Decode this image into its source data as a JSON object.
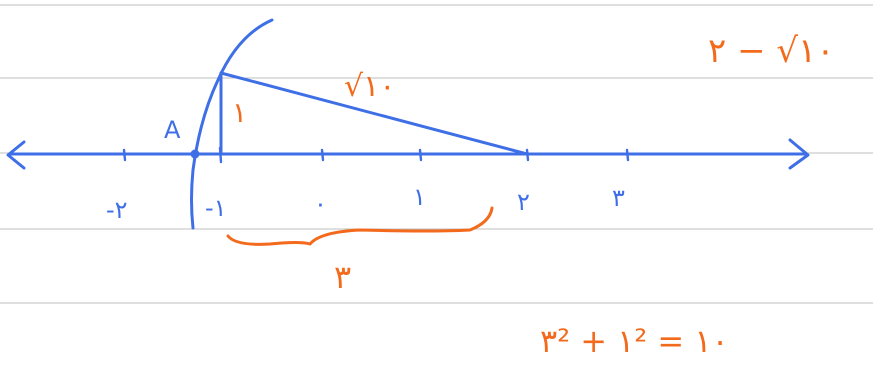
{
  "point_label": "A",
  "tick_labels": [
    "-۲",
    "-۱",
    "۰",
    "۱",
    "۲",
    "۳"
  ],
  "leg_label": "۱",
  "hyp_label": "√۱۰",
  "base_label": "۳",
  "equation": "۳² + ۱² = ۱۰",
  "result": "۲ − √۱۰",
  "colors": {
    "pen_blue": "#3f6fe6",
    "pen_orange": "#f36a1c",
    "rule": "#bfbfbf"
  }
}
